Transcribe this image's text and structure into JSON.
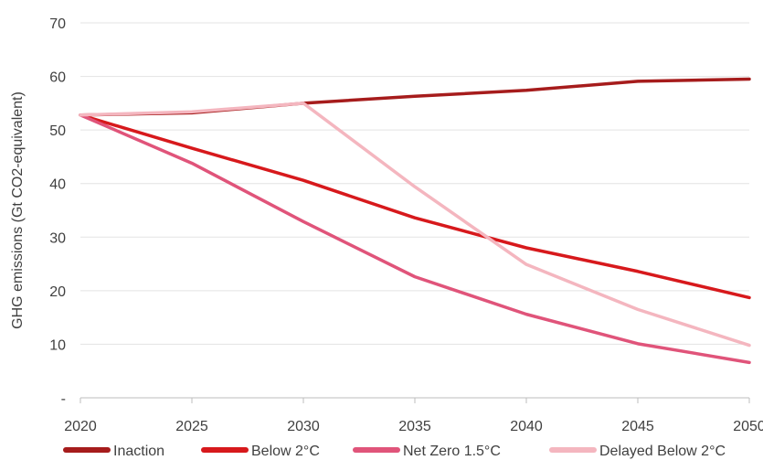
{
  "chart_data": {
    "type": "line",
    "title": "",
    "xlabel": "",
    "ylabel": "GHG emissions (Gt CO2-equivalent)",
    "x": [
      2020,
      2025,
      2030,
      2035,
      2040,
      2045,
      2050
    ],
    "xlim": [
      2020,
      2050
    ],
    "ylim": [
      0,
      70
    ],
    "yticks": [
      0,
      10,
      20,
      30,
      40,
      50,
      60,
      70
    ],
    "ytick_labels": [
      "-",
      "10",
      "20",
      "30",
      "40",
      "50",
      "60",
      "70"
    ],
    "xtick_labels": [
      "2020",
      "2025",
      "2030",
      "2035",
      "2040",
      "2045",
      "2050"
    ],
    "grid": true,
    "legend_position": "bottom",
    "series": [
      {
        "name": "Inaction",
        "color": "#a61c1c",
        "values": [
          52.8,
          53.2,
          55.0,
          56.3,
          57.4,
          59.1,
          59.5
        ]
      },
      {
        "name": "Below 2°C",
        "color": "#d7191c",
        "values": [
          52.8,
          46.6,
          40.6,
          33.6,
          28.0,
          23.6,
          18.7
        ]
      },
      {
        "name": "Net Zero 1.5°C",
        "color": "#e0547a",
        "values": [
          52.8,
          43.8,
          32.9,
          22.6,
          15.6,
          10.1,
          6.6
        ]
      },
      {
        "name": "Delayed Below 2°C",
        "color": "#f4b6bf",
        "values": [
          52.8,
          53.4,
          55.0,
          39.4,
          24.9,
          16.5,
          9.8
        ]
      }
    ]
  }
}
